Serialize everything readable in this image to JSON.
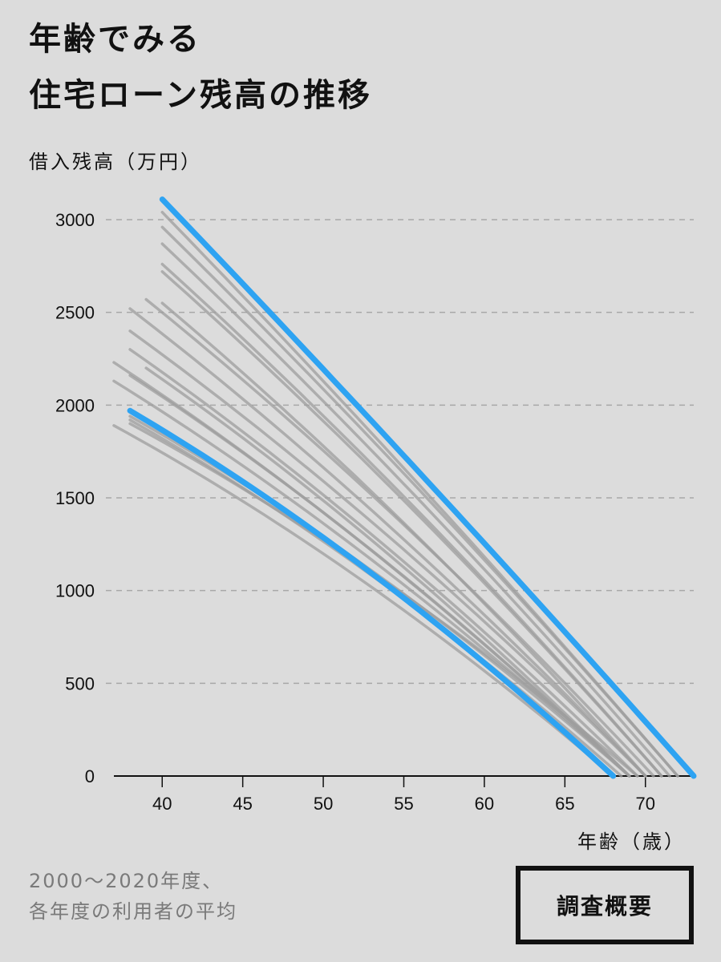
{
  "title": {
    "line1": "年齢でみる",
    "line2": "住宅ローン残高の推移"
  },
  "note": {
    "line1": "2000〜2020年度、",
    "line2": "各年度の利用者の平均"
  },
  "button": {
    "label": "調査概要"
  },
  "colors": {
    "highlight": "#2ea3f2",
    "other": "#9e9e9e",
    "background": "#dcdcdc",
    "grid": "#a8a8a8"
  },
  "chart_data": {
    "type": "line",
    "ylabel": "借入残高（万円）",
    "xlabel": "年齢（歳）",
    "xlim": [
      37,
      73
    ],
    "ylim": [
      0,
      3000
    ],
    "xticks": [
      40,
      45,
      50,
      55,
      60,
      65,
      70
    ],
    "yticks": [
      0,
      500,
      1000,
      1500,
      2000,
      2500,
      3000
    ],
    "grid": "horizontal-dashed",
    "series_highlight": [
      {
        "start_age": 40,
        "start_balance": 3110,
        "end_age": 73,
        "curve": 0.04
      },
      {
        "start_age": 38,
        "start_balance": 1970,
        "end_age": 68,
        "curve": 0.22
      }
    ],
    "series_other": [
      {
        "start_age": 40,
        "start_balance": 3040,
        "end_age": 72,
        "curve": 0.06
      },
      {
        "start_age": 40,
        "start_balance": 2960,
        "end_age": 72,
        "curve": 0.08
      },
      {
        "start_age": 40,
        "start_balance": 2870,
        "end_age": 71.5,
        "curve": 0.1
      },
      {
        "start_age": 40,
        "start_balance": 2760,
        "end_age": 71,
        "curve": 0.12
      },
      {
        "start_age": 40,
        "start_balance": 2720,
        "end_age": 71,
        "curve": 0.12
      },
      {
        "start_age": 39,
        "start_balance": 2570,
        "end_age": 70.5,
        "curve": 0.14
      },
      {
        "start_age": 40,
        "start_balance": 2550,
        "end_age": 70,
        "curve": 0.14
      },
      {
        "start_age": 38,
        "start_balance": 2520,
        "end_age": 70,
        "curve": 0.15
      },
      {
        "start_age": 38,
        "start_balance": 2400,
        "end_age": 70,
        "curve": 0.16
      },
      {
        "start_age": 38,
        "start_balance": 2300,
        "end_age": 69.5,
        "curve": 0.17
      },
      {
        "start_age": 37,
        "start_balance": 2230,
        "end_age": 69,
        "curve": 0.18
      },
      {
        "start_age": 39,
        "start_balance": 2200,
        "end_age": 69,
        "curve": 0.18
      },
      {
        "start_age": 38,
        "start_balance": 2160,
        "end_age": 69,
        "curve": 0.19
      },
      {
        "start_age": 37,
        "start_balance": 2130,
        "end_age": 69,
        "curve": 0.19
      },
      {
        "start_age": 38,
        "start_balance": 1940,
        "end_age": 69,
        "curve": 0.22
      },
      {
        "start_age": 38,
        "start_balance": 1920,
        "end_age": 68.5,
        "curve": 0.22
      },
      {
        "start_age": 37,
        "start_balance": 1890,
        "end_age": 68,
        "curve": 0.22
      },
      {
        "start_age": 38,
        "start_balance": 1900,
        "end_age": 69.5,
        "curve": 0.22
      }
    ]
  }
}
